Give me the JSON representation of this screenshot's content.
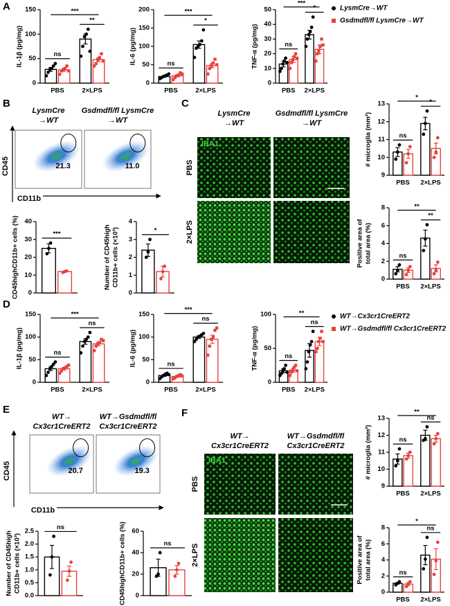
{
  "panels": [
    "A",
    "B",
    "C",
    "D",
    "E",
    "F"
  ],
  "flow": [
    {
      "headers": [
        [
          "LysmCre",
          "→WT"
        ],
        [
          "Gsdmdfl/fl LysmCre",
          "→WT"
        ]
      ],
      "gates": [
        "21.3",
        "11.0"
      ],
      "y_axis": "CD45",
      "x_axis": "CD11b"
    },
    {
      "headers": [
        [
          "WT→",
          "Cx3cr1CreERT2"
        ],
        [
          "WT→Gsdmdfl/fl",
          "Cx3cr1CreERT2"
        ]
      ],
      "gates": [
        "20.7",
        "19.3"
      ],
      "y_axis": "CD45",
      "x_axis": "CD11b"
    }
  ],
  "images": [
    {
      "headers": [
        [
          "LysmCre",
          "→WT"
        ],
        [
          "Gsdmdfl/fl LysmCre",
          "→WT"
        ]
      ],
      "stain": "IBA1",
      "rows": [
        "PBS",
        "2×LPS"
      ]
    },
    {
      "headers": [
        [
          "WT→",
          "Cx3cr1CreERT2"
        ],
        [
          "WT→Gsdmdfl/fl",
          "Cx3cr1CreERT2"
        ]
      ],
      "stain": "IBA1",
      "rows": [
        "PBS",
        "2×LPS"
      ]
    }
  ],
  "chart_data": [
    {
      "type": "bar",
      "ylabel": "IL-1β (pg/mg)",
      "categories": [
        "PBS",
        "2×LPS"
      ],
      "ylim": [
        0,
        150
      ],
      "yticks": [
        0,
        50,
        100,
        150
      ],
      "series": [
        {
          "color": "#000000",
          "marker": "circle",
          "values": [
            28,
            90
          ],
          "errors": [
            4,
            10
          ],
          "points": [
            [
              15,
              22,
              28,
              30,
              35,
              40
            ],
            [
              55,
              75,
              95,
              100,
              110,
              65
            ]
          ]
        },
        {
          "color": "#e8413c",
          "marker": "square",
          "values": [
            27,
            48
          ],
          "errors": [
            3,
            4
          ],
          "points": [
            [
              18,
              25,
              28,
              30,
              35,
              25
            ],
            [
              35,
              40,
              48,
              52,
              60,
              45
            ]
          ]
        }
      ],
      "significance": {
        "within": [
          "ns",
          "**"
        ],
        "across": "***"
      }
    },
    {
      "type": "bar",
      "ylabel": "IL-6 (pg/mg)",
      "categories": [
        "PBS",
        "2×LPS"
      ],
      "ylim": [
        0,
        200
      ],
      "yticks": [
        0,
        50,
        100,
        150,
        200
      ],
      "series": [
        {
          "color": "#000000",
          "marker": "circle",
          "values": [
            18,
            105
          ],
          "errors": [
            2,
            10
          ],
          "points": [
            [
              12,
              15,
              18,
              20,
              22,
              25
            ],
            [
              70,
              95,
              100,
              105,
              115,
              145
            ]
          ]
        },
        {
          "color": "#e8413c",
          "marker": "square",
          "values": [
            20,
            48
          ],
          "errors": [
            3,
            6
          ],
          "points": [
            [
              10,
              15,
              20,
              22,
              28,
              25
            ],
            [
              25,
              40,
              48,
              55,
              65,
              50
            ]
          ]
        }
      ],
      "significance": {
        "within": [
          "ns",
          "*"
        ],
        "across": "***"
      }
    },
    {
      "type": "bar",
      "ylabel": "TNF-α (pg/mg)",
      "categories": [
        "PBS",
        "2×LPS"
      ],
      "ylim": [
        0,
        50
      ],
      "yticks": [
        0,
        10,
        20,
        30,
        40,
        50
      ],
      "series": [
        {
          "name": "LysmCre→WT",
          "color": "#000000",
          "marker": "circle",
          "values": [
            13,
            33
          ],
          "errors": [
            2,
            3
          ],
          "points": [
            [
              8,
              10,
              13,
              15,
              17,
              14
            ],
            [
              25,
              30,
              33,
              35,
              38,
              45
            ]
          ]
        },
        {
          "name": "Gsdmdfl/fl LysmCre→WT",
          "color": "#e8413c",
          "marker": "square",
          "values": [
            16,
            23
          ],
          "errors": [
            2,
            3
          ],
          "points": [
            [
              10,
              14,
              16,
              18,
              20,
              17
            ],
            [
              15,
              20,
              22,
              25,
              30,
              26
            ]
          ]
        }
      ],
      "significance": {
        "within": [
          "ns",
          "*"
        ],
        "across": "***"
      }
    },
    {
      "type": "bar",
      "ylabel": "CD45highCD11b+ cells (%)",
      "ylim": [
        0,
        40
      ],
      "yticks": [
        0,
        10,
        20,
        30,
        40
      ],
      "series": [
        {
          "color": "#000000",
          "marker": "circle",
          "values": [
            25
          ],
          "errors": [
            2.5
          ],
          "points": [
            [
              22,
              25,
              28
            ]
          ]
        },
        {
          "color": "#e8413c",
          "marker": "circle",
          "values": [
            12
          ],
          "errors": [
            0.3
          ],
          "points": [
            [
              11.5,
              12,
              12.3
            ]
          ]
        }
      ],
      "significance": {
        "within": [
          "***"
        ]
      }
    },
    {
      "type": "bar",
      "ylabel": [
        "Number of CD45high",
        "CD11b+ cells (×10³)"
      ],
      "ylim": [
        0,
        4
      ],
      "yticks": [
        0,
        1,
        2,
        3,
        4
      ],
      "series": [
        {
          "color": "#000000",
          "marker": "circle",
          "values": [
            2.4
          ],
          "errors": [
            0.35
          ],
          "points": [
            [
              2.0,
              2.3,
              3.0
            ]
          ]
        },
        {
          "color": "#e8413c",
          "marker": "circle",
          "values": [
            1.2
          ],
          "errors": [
            0.3
          ],
          "points": [
            [
              0.8,
              1.2,
              1.5
            ]
          ]
        }
      ],
      "significance": {
        "within": [
          "*"
        ]
      }
    },
    {
      "type": "bar",
      "ylabel": "# microglia (mm²)",
      "categories": [
        "PBS",
        "2×LPS"
      ],
      "ylim": [
        9,
        13
      ],
      "yticks": [
        9,
        10,
        11,
        12,
        13
      ],
      "series": [
        {
          "color": "#000000",
          "marker": "circle",
          "values": [
            10.3,
            11.9
          ],
          "errors": [
            0.25,
            0.35
          ],
          "points": [
            [
              9.9,
              10.3,
              10.7
            ],
            [
              11.3,
              11.9,
              12.6
            ]
          ]
        },
        {
          "color": "#e8413c",
          "marker": "circle",
          "values": [
            10.2,
            10.5
          ],
          "errors": [
            0.25,
            0.3
          ],
          "points": [
            [
              9.7,
              10.2,
              10.6
            ],
            [
              10.0,
              10.3,
              11.1
            ]
          ]
        }
      ],
      "significance": {
        "within": [
          "ns",
          "*"
        ],
        "across": "*"
      }
    },
    {
      "type": "bar",
      "ylabel": [
        "Positive area of",
        "total area (%)"
      ],
      "categories": [
        "PBS",
        "2×LPS"
      ],
      "ylim": [
        0,
        8
      ],
      "yticks": [
        0,
        2,
        4,
        6,
        8
      ],
      "series": [
        {
          "color": "#000000",
          "marker": "circle",
          "values": [
            1.1,
            4.6
          ],
          "errors": [
            0.3,
            0.9
          ],
          "points": [
            [
              0.6,
              1.0,
              1.6
            ],
            [
              3.2,
              4.5,
              6.1
            ]
          ]
        },
        {
          "color": "#e8413c",
          "marker": "circle",
          "values": [
            1.0,
            1.2
          ],
          "errors": [
            0.25,
            0.4
          ],
          "points": [
            [
              0.5,
              1.0,
              1.4
            ],
            [
              0.6,
              1.0,
              1.9
            ]
          ]
        }
      ],
      "significance": {
        "within": [
          "ns",
          "**"
        ],
        "across": "**"
      }
    },
    {
      "type": "bar",
      "ylabel": "IL-1β (pg/mg)",
      "categories": [
        "PBS",
        "2×LPS"
      ],
      "ylim": [
        0,
        150
      ],
      "yticks": [
        0,
        50,
        100,
        150
      ],
      "series": [
        {
          "color": "#000000",
          "marker": "circle",
          "values": [
            30,
            90
          ],
          "errors": [
            4,
            6
          ],
          "points": [
            [
              15,
              22,
              30,
              35,
              40,
              45
            ],
            [
              65,
              80,
              90,
              95,
              100,
              110
            ]
          ]
        },
        {
          "color": "#e8413c",
          "marker": "square",
          "values": [
            30,
            85
          ],
          "errors": [
            3,
            4
          ],
          "points": [
            [
              20,
              25,
              30,
              32,
              35,
              38
            ],
            [
              70,
              80,
              85,
              88,
              95,
              92
            ]
          ]
        }
      ],
      "significance": {
        "within": [
          "ns",
          "ns"
        ],
        "across": "***"
      }
    },
    {
      "type": "bar",
      "ylabel": "IL-6 (pg/mg)",
      "categories": [
        "PBS",
        "2×LPS"
      ],
      "ylim": [
        0,
        150
      ],
      "yticks": [
        0,
        50,
        100,
        150
      ],
      "series": [
        {
          "color": "#000000",
          "marker": "circle",
          "values": [
            15,
            100
          ],
          "errors": [
            2,
            3
          ],
          "points": [
            [
              8,
              12,
              15,
              18,
              20,
              17
            ],
            [
              90,
              95,
              100,
              102,
              105,
              108
            ]
          ]
        },
        {
          "color": "#e8413c",
          "marker": "square",
          "values": [
            13,
            95
          ],
          "errors": [
            2,
            9
          ],
          "points": [
            [
              8,
              10,
              13,
              15,
              17,
              14
            ],
            [
              60,
              80,
              95,
              100,
              115,
              120
            ]
          ]
        }
      ],
      "significance": {
        "within": [
          "ns",
          "ns"
        ],
        "across": "***"
      }
    },
    {
      "type": "bar",
      "ylabel": "TNF-α (pg/mg)",
      "categories": [
        "PBS",
        "2×LPS"
      ],
      "ylim": [
        0,
        100
      ],
      "yticks": [
        0,
        50,
        100
      ],
      "series": [
        {
          "name": "WT→Cx3cr1CreERT2",
          "color": "#000000",
          "marker": "circle",
          "values": [
            17,
            47
          ],
          "errors": [
            3,
            10
          ],
          "points": [
            [
              10,
              13,
              17,
              20,
              25,
              15
            ],
            [
              20,
              30,
              45,
              55,
              60,
              75
            ]
          ]
        },
        {
          "name": "WT→Gsdmdfl/fl Cx3cr1CreERT2",
          "color": "#e8413c",
          "marker": "square",
          "values": [
            18,
            60
          ],
          "errors": [
            3,
            6
          ],
          "points": [
            [
              10,
              15,
              18,
              22,
              25,
              17
            ],
            [
              45,
              50,
              60,
              65,
              75,
              60
            ]
          ]
        }
      ],
      "significance": {
        "within": [
          "ns",
          "ns"
        ],
        "across": "**"
      }
    },
    {
      "type": "bar",
      "ylabel": [
        "Number of CD45high",
        "CD11b+ cells (×10³)"
      ],
      "ylim": [
        0,
        2.5
      ],
      "yticks": [
        {
          "value": 0,
          "label": "0.0"
        },
        {
          "value": 0.5,
          "label": "0.5"
        },
        {
          "value": 1,
          "label": "1.0"
        },
        {
          "value": 1.5,
          "label": "1.5"
        },
        {
          "value": 2,
          "label": "2.0"
        },
        {
          "value": 2.5,
          "label": "2.5"
        }
      ],
      "series": [
        {
          "color": "#000000",
          "marker": "circle",
          "values": [
            1.5
          ],
          "errors": [
            0.45
          ],
          "points": [
            [
              0.8,
              1.5,
              2.3
            ]
          ]
        },
        {
          "color": "#e8413c",
          "marker": "circle",
          "values": [
            0.95
          ],
          "errors": [
            0.2
          ],
          "points": [
            [
              0.6,
              0.95,
              1.3
            ]
          ]
        }
      ],
      "significance": {
        "within": [
          "ns"
        ]
      }
    },
    {
      "type": "bar",
      "ylabel": "CD45highCD11b+ cells (%)",
      "ylim": [
        0,
        60
      ],
      "yticks": [
        0,
        20,
        40,
        60
      ],
      "series": [
        {
          "color": "#000000",
          "marker": "circle",
          "values": [
            26
          ],
          "errors": [
            8
          ],
          "points": [
            [
              18,
              20,
              40
            ]
          ]
        },
        {
          "color": "#e8413c",
          "marker": "circle",
          "values": [
            24
          ],
          "errors": [
            4
          ],
          "points": [
            [
              18,
              24,
              30
            ]
          ]
        }
      ],
      "significance": {
        "within": [
          "ns"
        ]
      }
    },
    {
      "type": "bar",
      "ylabel": "# microglia (mm²)",
      "categories": [
        "PBS",
        "2×LPS"
      ],
      "ylim": [
        9,
        13
      ],
      "yticks": [
        9,
        10,
        11,
        12,
        13
      ],
      "series": [
        {
          "color": "#000000",
          "marker": "circle",
          "values": [
            10.6,
            12.0
          ],
          "errors": [
            0.3,
            0.3
          ],
          "points": [
            [
              10.2,
              10.5,
              11.2
            ],
            [
              11.7,
              11.8,
              12.5
            ]
          ]
        },
        {
          "color": "#e8413c",
          "marker": "circle",
          "values": [
            10.8,
            11.8
          ],
          "errors": [
            0.15,
            0.2
          ],
          "points": [
            [
              10.6,
              10.8,
              11.0
            ],
            [
              11.5,
              11.8,
              12.1
            ]
          ]
        }
      ],
      "significance": {
        "within": [
          "ns",
          "ns"
        ],
        "across": "**"
      }
    },
    {
      "type": "bar",
      "ylabel": [
        "Positive area of",
        "total area (%)"
      ],
      "categories": [
        "PBS",
        "2×LPS"
      ],
      "ylim": [
        0,
        8
      ],
      "yticks": [
        0,
        2,
        4,
        6,
        8
      ],
      "series": [
        {
          "color": "#000000",
          "marker": "circle",
          "values": [
            1.1,
            4.6
          ],
          "errors": [
            0.1,
            1.2
          ],
          "points": [
            [
              0.9,
              1.1,
              1.3
            ],
            [
              2.9,
              4.1,
              6.8
            ]
          ]
        },
        {
          "color": "#e8413c",
          "marker": "circle",
          "values": [
            1.0,
            4.1
          ],
          "errors": [
            0.2,
            1.3
          ],
          "points": [
            [
              0.7,
              1.0,
              1.3
            ],
            [
              2.2,
              3.9,
              6.2
            ]
          ]
        }
      ],
      "significance": {
        "within": [
          "ns",
          "ns"
        ],
        "across": "*"
      }
    }
  ]
}
